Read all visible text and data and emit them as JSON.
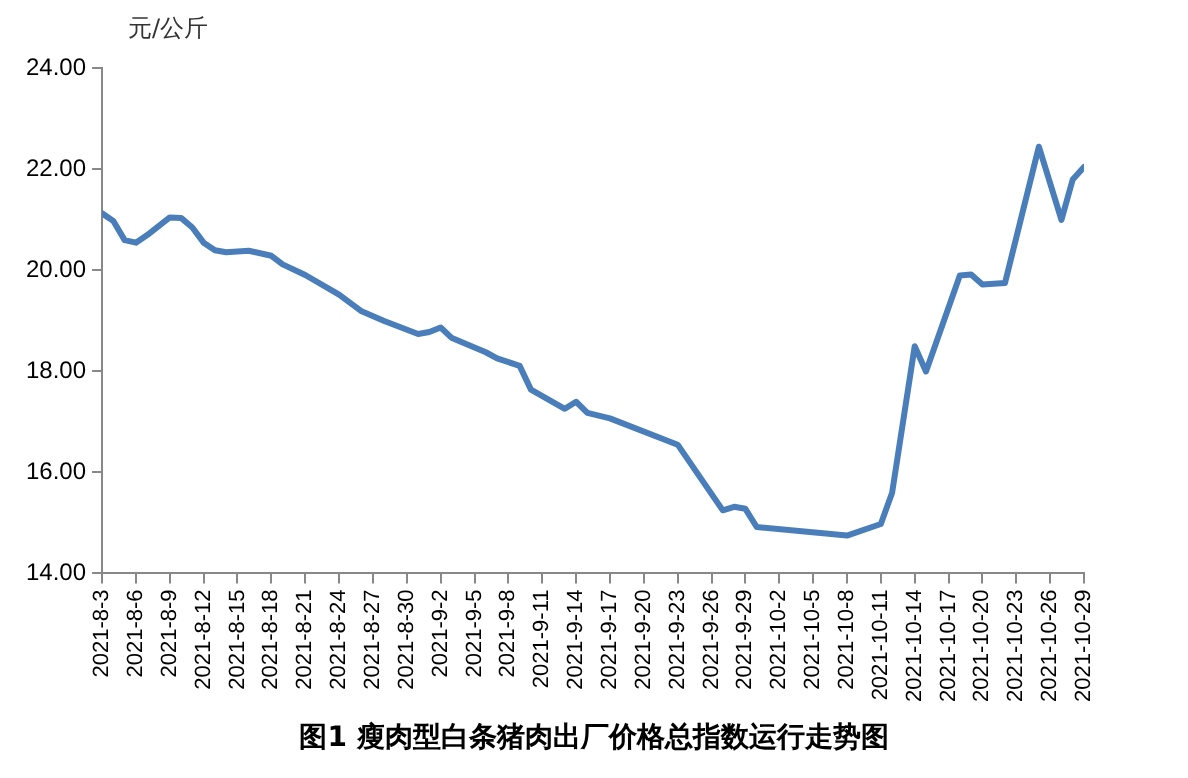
{
  "chart_data": {
    "type": "line",
    "title": "图1 瘦肉型白条猪肉出厂价格总指数运行走势图",
    "ylabel": "元/公斤",
    "x": [
      "2021-08-03",
      "2021-08-04",
      "2021-08-05",
      "2021-08-06",
      "2021-08-07",
      "2021-08-09",
      "2021-08-10",
      "2021-08-11",
      "2021-08-12",
      "2021-08-13",
      "2021-08-14",
      "2021-08-16",
      "2021-08-18",
      "2021-08-19",
      "2021-08-21",
      "2021-08-24",
      "2021-08-26",
      "2021-08-28",
      "2021-08-31",
      "2021-09-01",
      "2021-09-02",
      "2021-09-03",
      "2021-09-06",
      "2021-09-07",
      "2021-09-09",
      "2021-09-10",
      "2021-09-13",
      "2021-09-14",
      "2021-09-15",
      "2021-09-17",
      "2021-09-23",
      "2021-09-27",
      "2021-09-28",
      "2021-09-29",
      "2021-09-30",
      "2021-10-08",
      "2021-10-11",
      "2021-10-12",
      "2021-10-14",
      "2021-10-15",
      "2021-10-18",
      "2021-10-19",
      "2021-10-20",
      "2021-10-22",
      "2021-10-25",
      "2021-10-27",
      "2021-10-28",
      "2021-10-29"
    ],
    "series": [
      {
        "color": "#4a7ebb",
        "values": [
          21.13,
          20.98,
          20.6,
          20.55,
          20.7,
          21.05,
          21.04,
          20.85,
          20.55,
          20.4,
          20.36,
          20.39,
          20.29,
          20.12,
          19.91,
          19.52,
          19.19,
          19.0,
          18.74,
          18.78,
          18.87,
          18.66,
          18.38,
          18.26,
          18.11,
          17.64,
          17.26,
          17.4,
          17.18,
          17.07,
          16.55,
          15.25,
          15.32,
          15.28,
          14.92,
          14.75,
          14.98,
          15.6,
          18.5,
          18.0,
          19.9,
          19.92,
          19.72,
          19.75,
          22.45,
          21.0,
          21.8,
          22.05
        ]
      }
    ],
    "xlim": [
      "2021-08-03",
      "2021-10-29"
    ],
    "xticks": [
      {
        "value": "2021-08-03",
        "label": "2021-8-3"
      },
      {
        "value": "2021-08-06",
        "label": "2021-8-6"
      },
      {
        "value": "2021-08-09",
        "label": "2021-8-9"
      },
      {
        "value": "2021-08-12",
        "label": "2021-8-12"
      },
      {
        "value": "2021-08-15",
        "label": "2021-8-15"
      },
      {
        "value": "2021-08-18",
        "label": "2021-8-18"
      },
      {
        "value": "2021-08-21",
        "label": "2021-8-21"
      },
      {
        "value": "2021-08-24",
        "label": "2021-8-24"
      },
      {
        "value": "2021-08-27",
        "label": "2021-8-27"
      },
      {
        "value": "2021-08-30",
        "label": "2021-8-30"
      },
      {
        "value": "2021-09-02",
        "label": "2021-9-2"
      },
      {
        "value": "2021-09-05",
        "label": "2021-9-5"
      },
      {
        "value": "2021-09-08",
        "label": "2021-9-8"
      },
      {
        "value": "2021-09-11",
        "label": "2021-9-11"
      },
      {
        "value": "2021-09-14",
        "label": "2021-9-14"
      },
      {
        "value": "2021-09-17",
        "label": "2021-9-17"
      },
      {
        "value": "2021-09-20",
        "label": "2021-9-20"
      },
      {
        "value": "2021-09-23",
        "label": "2021-9-23"
      },
      {
        "value": "2021-09-26",
        "label": "2021-9-26"
      },
      {
        "value": "2021-09-29",
        "label": "2021-9-29"
      },
      {
        "value": "2021-10-02",
        "label": "2021-10-2"
      },
      {
        "value": "2021-10-05",
        "label": "2021-10-5"
      },
      {
        "value": "2021-10-08",
        "label": "2021-10-8"
      },
      {
        "value": "2021-10-11",
        "label": "2021-10-11"
      },
      {
        "value": "2021-10-14",
        "label": "2021-10-14"
      },
      {
        "value": "2021-10-17",
        "label": "2021-10-17"
      },
      {
        "value": "2021-10-20",
        "label": "2021-10-20"
      },
      {
        "value": "2021-10-23",
        "label": "2021-10-23"
      },
      {
        "value": "2021-10-26",
        "label": "2021-10-26"
      },
      {
        "value": "2021-10-29",
        "label": "2021-10-29"
      }
    ],
    "ylim": [
      14,
      24
    ],
    "yticks": [
      {
        "value": 14,
        "label": "14.00"
      },
      {
        "value": 16,
        "label": "16.00"
      },
      {
        "value": 18,
        "label": "18.00"
      },
      {
        "value": 20,
        "label": "20.00"
      },
      {
        "value": 22,
        "label": "22.00"
      },
      {
        "value": 24,
        "label": "24.00"
      }
    ],
    "grid": false,
    "legend": false,
    "marker": "none",
    "line_style": "solid"
  }
}
